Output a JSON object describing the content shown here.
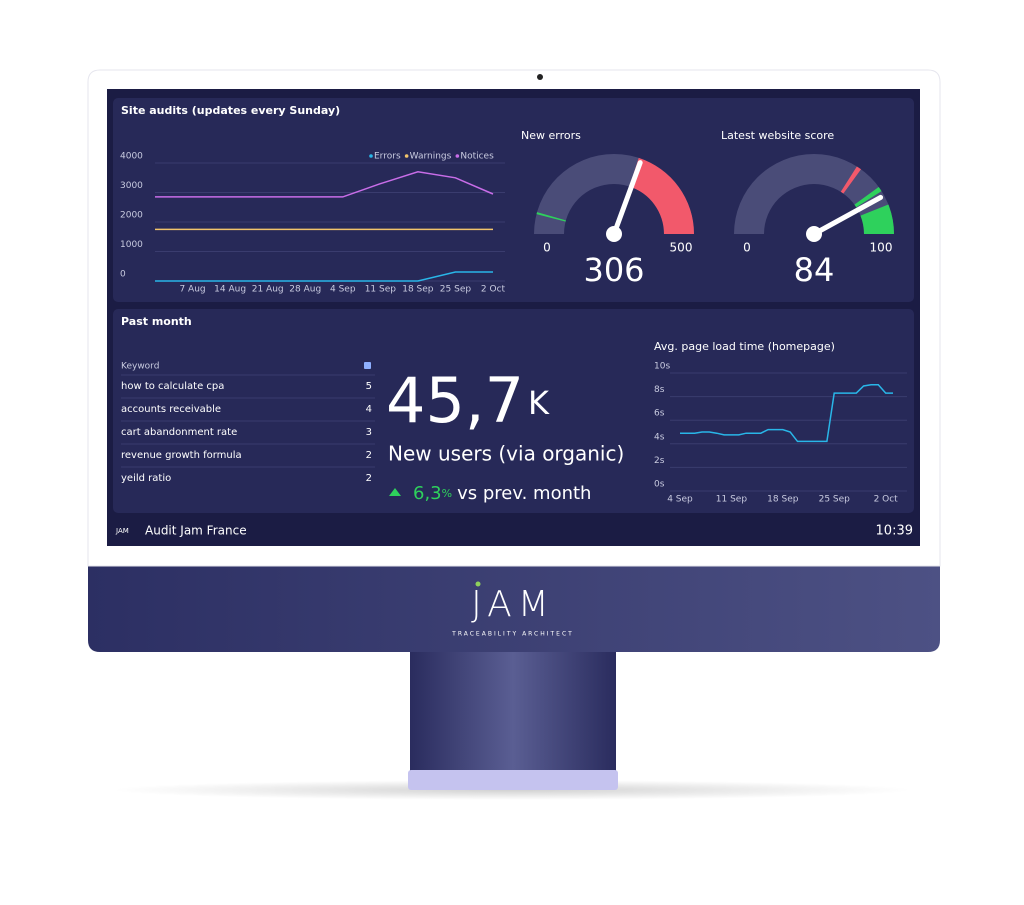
{
  "site_audits": {
    "type": "line",
    "title": "Site audits (updates every Sunday)",
    "x": [
      null,
      "7 Aug",
      "14 Aug",
      "21 Aug",
      "28 Aug",
      "4 Sep",
      "11 Sep",
      "18 Sep",
      "25 Sep",
      "2 Oct"
    ],
    "series": [
      {
        "name": "Errors",
        "color": "#29b6e8",
        "values": [
          0,
          0,
          0,
          0,
          0,
          0,
          0,
          0,
          306,
          306
        ]
      },
      {
        "name": "Warnings",
        "color": "#f2c46b",
        "values": [
          1750,
          1750,
          1750,
          1750,
          1750,
          1750,
          1750,
          1750,
          1750,
          1750
        ]
      },
      {
        "name": "Notices",
        "color": "#c86de8",
        "values": [
          2850,
          2850,
          2850,
          2850,
          2850,
          2850,
          3300,
          3700,
          3500,
          2950
        ]
      }
    ],
    "ylim": [
      0,
      4000
    ],
    "yticks": [
      0,
      1000,
      2000,
      3000,
      4000
    ],
    "legend": "top-right"
  },
  "new_errors": {
    "type": "gauge",
    "title": "New errors",
    "min": 0,
    "max": 500,
    "value": 306,
    "bands": [
      {
        "from": 40,
        "to": 44,
        "color": "#2ed15c"
      },
      {
        "from": 300,
        "to": 500,
        "color": "#f2596b"
      }
    ]
  },
  "website_score": {
    "type": "gauge",
    "title": "Latest website score",
    "min": 0,
    "max": 100,
    "value": 84,
    "bands": [
      {
        "from": 68,
        "to": 70,
        "color": "#f2596b"
      },
      {
        "from": 80,
        "to": 82,
        "color": "#2ed15c"
      },
      {
        "from": 88,
        "to": 100,
        "color": "#2ed15c"
      }
    ]
  },
  "past_month": {
    "title": "Past month",
    "keywords": {
      "header": "Keyword",
      "rows": [
        [
          "how to calculate cpa",
          5
        ],
        [
          "accounts receivable",
          4
        ],
        [
          "cart abandonment rate",
          3
        ],
        [
          "revenue growth formula",
          2
        ],
        [
          "yeild ratio",
          2
        ]
      ]
    },
    "kpi": {
      "value": "45,7",
      "unit": "K",
      "label": "New users (via organic)",
      "change": "6,3",
      "change_unit": "%",
      "change_label": "vs prev. month"
    }
  },
  "load_time": {
    "type": "line",
    "title": "Avg. page load time (homepage)",
    "x": [
      "4 Sep",
      null,
      null,
      null,
      null,
      null,
      null,
      "11 Sep",
      null,
      null,
      null,
      null,
      null,
      null,
      "18 Sep",
      null,
      null,
      null,
      null,
      null,
      null,
      "25 Sep",
      null,
      null,
      null,
      null,
      null,
      null,
      "2 Oct",
      null
    ],
    "series": [
      {
        "name": "Load time",
        "color": "#29b6e8",
        "values": [
          4.9,
          4.9,
          4.9,
          5.0,
          5.0,
          4.9,
          4.75,
          4.75,
          4.75,
          4.9,
          4.9,
          4.9,
          5.2,
          5.2,
          5.2,
          5.0,
          4.2,
          4.2,
          4.2,
          4.2,
          4.2,
          8.3,
          8.3,
          8.3,
          8.3,
          8.9,
          9.0,
          9.0,
          8.3,
          8.3
        ]
      }
    ],
    "ylim": [
      0,
      10
    ],
    "yticks": [
      {
        "value": 0,
        "label": "0s"
      },
      {
        "value": 2,
        "label": "2s"
      },
      {
        "value": 4,
        "label": "4s"
      },
      {
        "value": 6,
        "label": "6s"
      },
      {
        "value": 8,
        "label": "8s"
      },
      {
        "value": 10,
        "label": "10s"
      }
    ]
  },
  "footer": {
    "logo": "JAM",
    "name": "Audit Jam France",
    "time": "10:39"
  },
  "brand": {
    "logo": "JAM",
    "tagline": "TRACEABILITY ARCHITECT"
  }
}
